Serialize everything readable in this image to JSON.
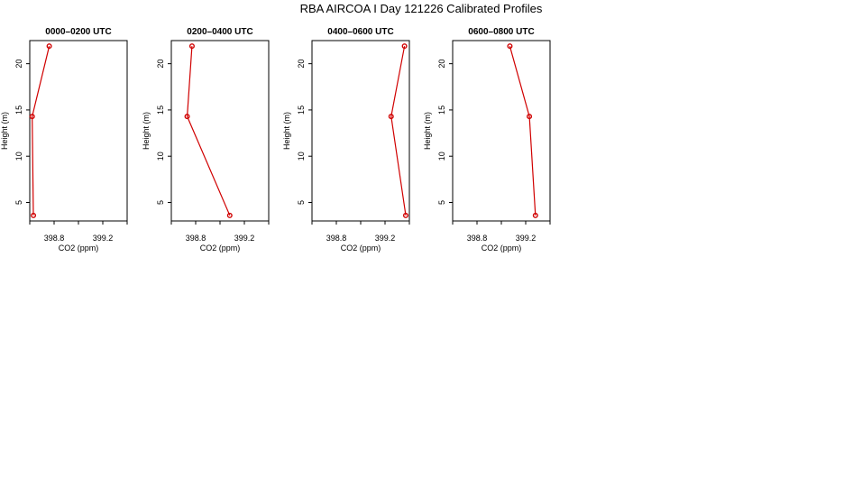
{
  "title": "RBA AIRCOA I  Day 121226  Calibrated Profiles",
  "colors": {
    "line": "#d00000",
    "marker": "#d00000",
    "axis": "#000000"
  },
  "chart_data": [
    {
      "type": "line",
      "title": "0000–0200 UTC",
      "xlabel": "CO2 (ppm)",
      "ylabel": "Height (m)",
      "xlim": [
        398.6,
        399.4
      ],
      "ylim": [
        3,
        22.5
      ],
      "xticks": [
        398.8,
        399.2
      ],
      "yticks": [
        5,
        10,
        15,
        20
      ],
      "grid": false,
      "series": [
        {
          "x": [
            398.63,
            398.62,
            398.76
          ],
          "y": [
            3.6,
            14.3,
            21.9
          ]
        }
      ]
    },
    {
      "type": "line",
      "title": "0200–0400 UTC",
      "xlabel": "CO2 (ppm)",
      "ylabel": "Height (m)",
      "xlim": [
        398.6,
        399.4
      ],
      "ylim": [
        3,
        22.5
      ],
      "xticks": [
        398.8,
        399.2
      ],
      "yticks": [
        5,
        10,
        15,
        20
      ],
      "grid": false,
      "series": [
        {
          "x": [
            399.08,
            398.73,
            398.77
          ],
          "y": [
            3.6,
            14.3,
            21.9
          ]
        }
      ]
    },
    {
      "type": "line",
      "title": "0400–0600 UTC",
      "xlabel": "CO2 (ppm)",
      "ylabel": "Height (m)",
      "xlim": [
        398.6,
        399.4
      ],
      "ylim": [
        3,
        22.5
      ],
      "xticks": [
        398.8,
        399.2
      ],
      "yticks": [
        5,
        10,
        15,
        20
      ],
      "grid": false,
      "series": [
        {
          "x": [
            399.37,
            399.25,
            399.36
          ],
          "y": [
            3.6,
            14.3,
            21.9
          ]
        }
      ]
    },
    {
      "type": "line",
      "title": "0600–0800 UTC",
      "xlabel": "CO2 (ppm)",
      "ylabel": "Height (m)",
      "xlim": [
        398.6,
        399.4
      ],
      "ylim": [
        3,
        22.5
      ],
      "xticks": [
        398.8,
        399.2
      ],
      "yticks": [
        5,
        10,
        15,
        20
      ],
      "grid": false,
      "series": [
        {
          "x": [
            399.28,
            399.23,
            399.07
          ],
          "y": [
            3.6,
            14.3,
            21.9
          ]
        }
      ]
    }
  ]
}
